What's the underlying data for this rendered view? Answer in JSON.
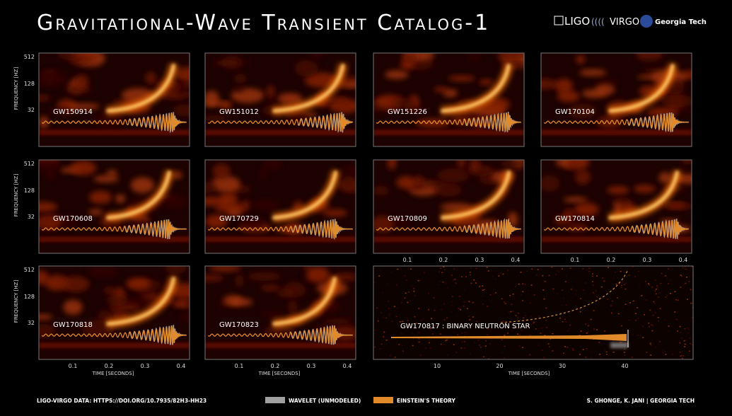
{
  "header": {
    "title": "Gravitational-Wave Transient Catalog-1",
    "logos": [
      "LIGO",
      "VIRGO",
      "Georgia Tech"
    ]
  },
  "panels": [
    {
      "event": "GW150914"
    },
    {
      "event": "GW151012"
    },
    {
      "event": "GW151226"
    },
    {
      "event": "GW170104"
    },
    {
      "event": "GW170608"
    },
    {
      "event": "GW170729"
    },
    {
      "event": "GW170809"
    },
    {
      "event": "GW170814"
    },
    {
      "event": "GW170818"
    },
    {
      "event": "GW170823"
    },
    {
      "event": "GW170817 : BINARY NEUTRON STAR"
    }
  ],
  "axes": {
    "frequency_label": "FREQUENCY [HZ]",
    "frequency_ticks": [
      "512",
      "128",
      "32"
    ],
    "time_label": "TIME [SECONDS]",
    "time_ticks": [
      "0.1",
      "0.2",
      "0.3",
      "0.4"
    ],
    "long_time_ticks": [
      "10",
      "20",
      "30",
      "40"
    ]
  },
  "legend": [
    {
      "label": "WAVELET (UNMODELED)",
      "color": "#a0a0a0"
    },
    {
      "label": "EINSTEIN'S THEORY",
      "color": "#e08a2a"
    }
  ],
  "footer": {
    "source": "LIGO-VIRGO DATA: HTTPS://DOI.ORG/10.7935/82H3-HH23",
    "credit": "S. GHONGE, K. JANI | GEORGIA TECH"
  }
}
